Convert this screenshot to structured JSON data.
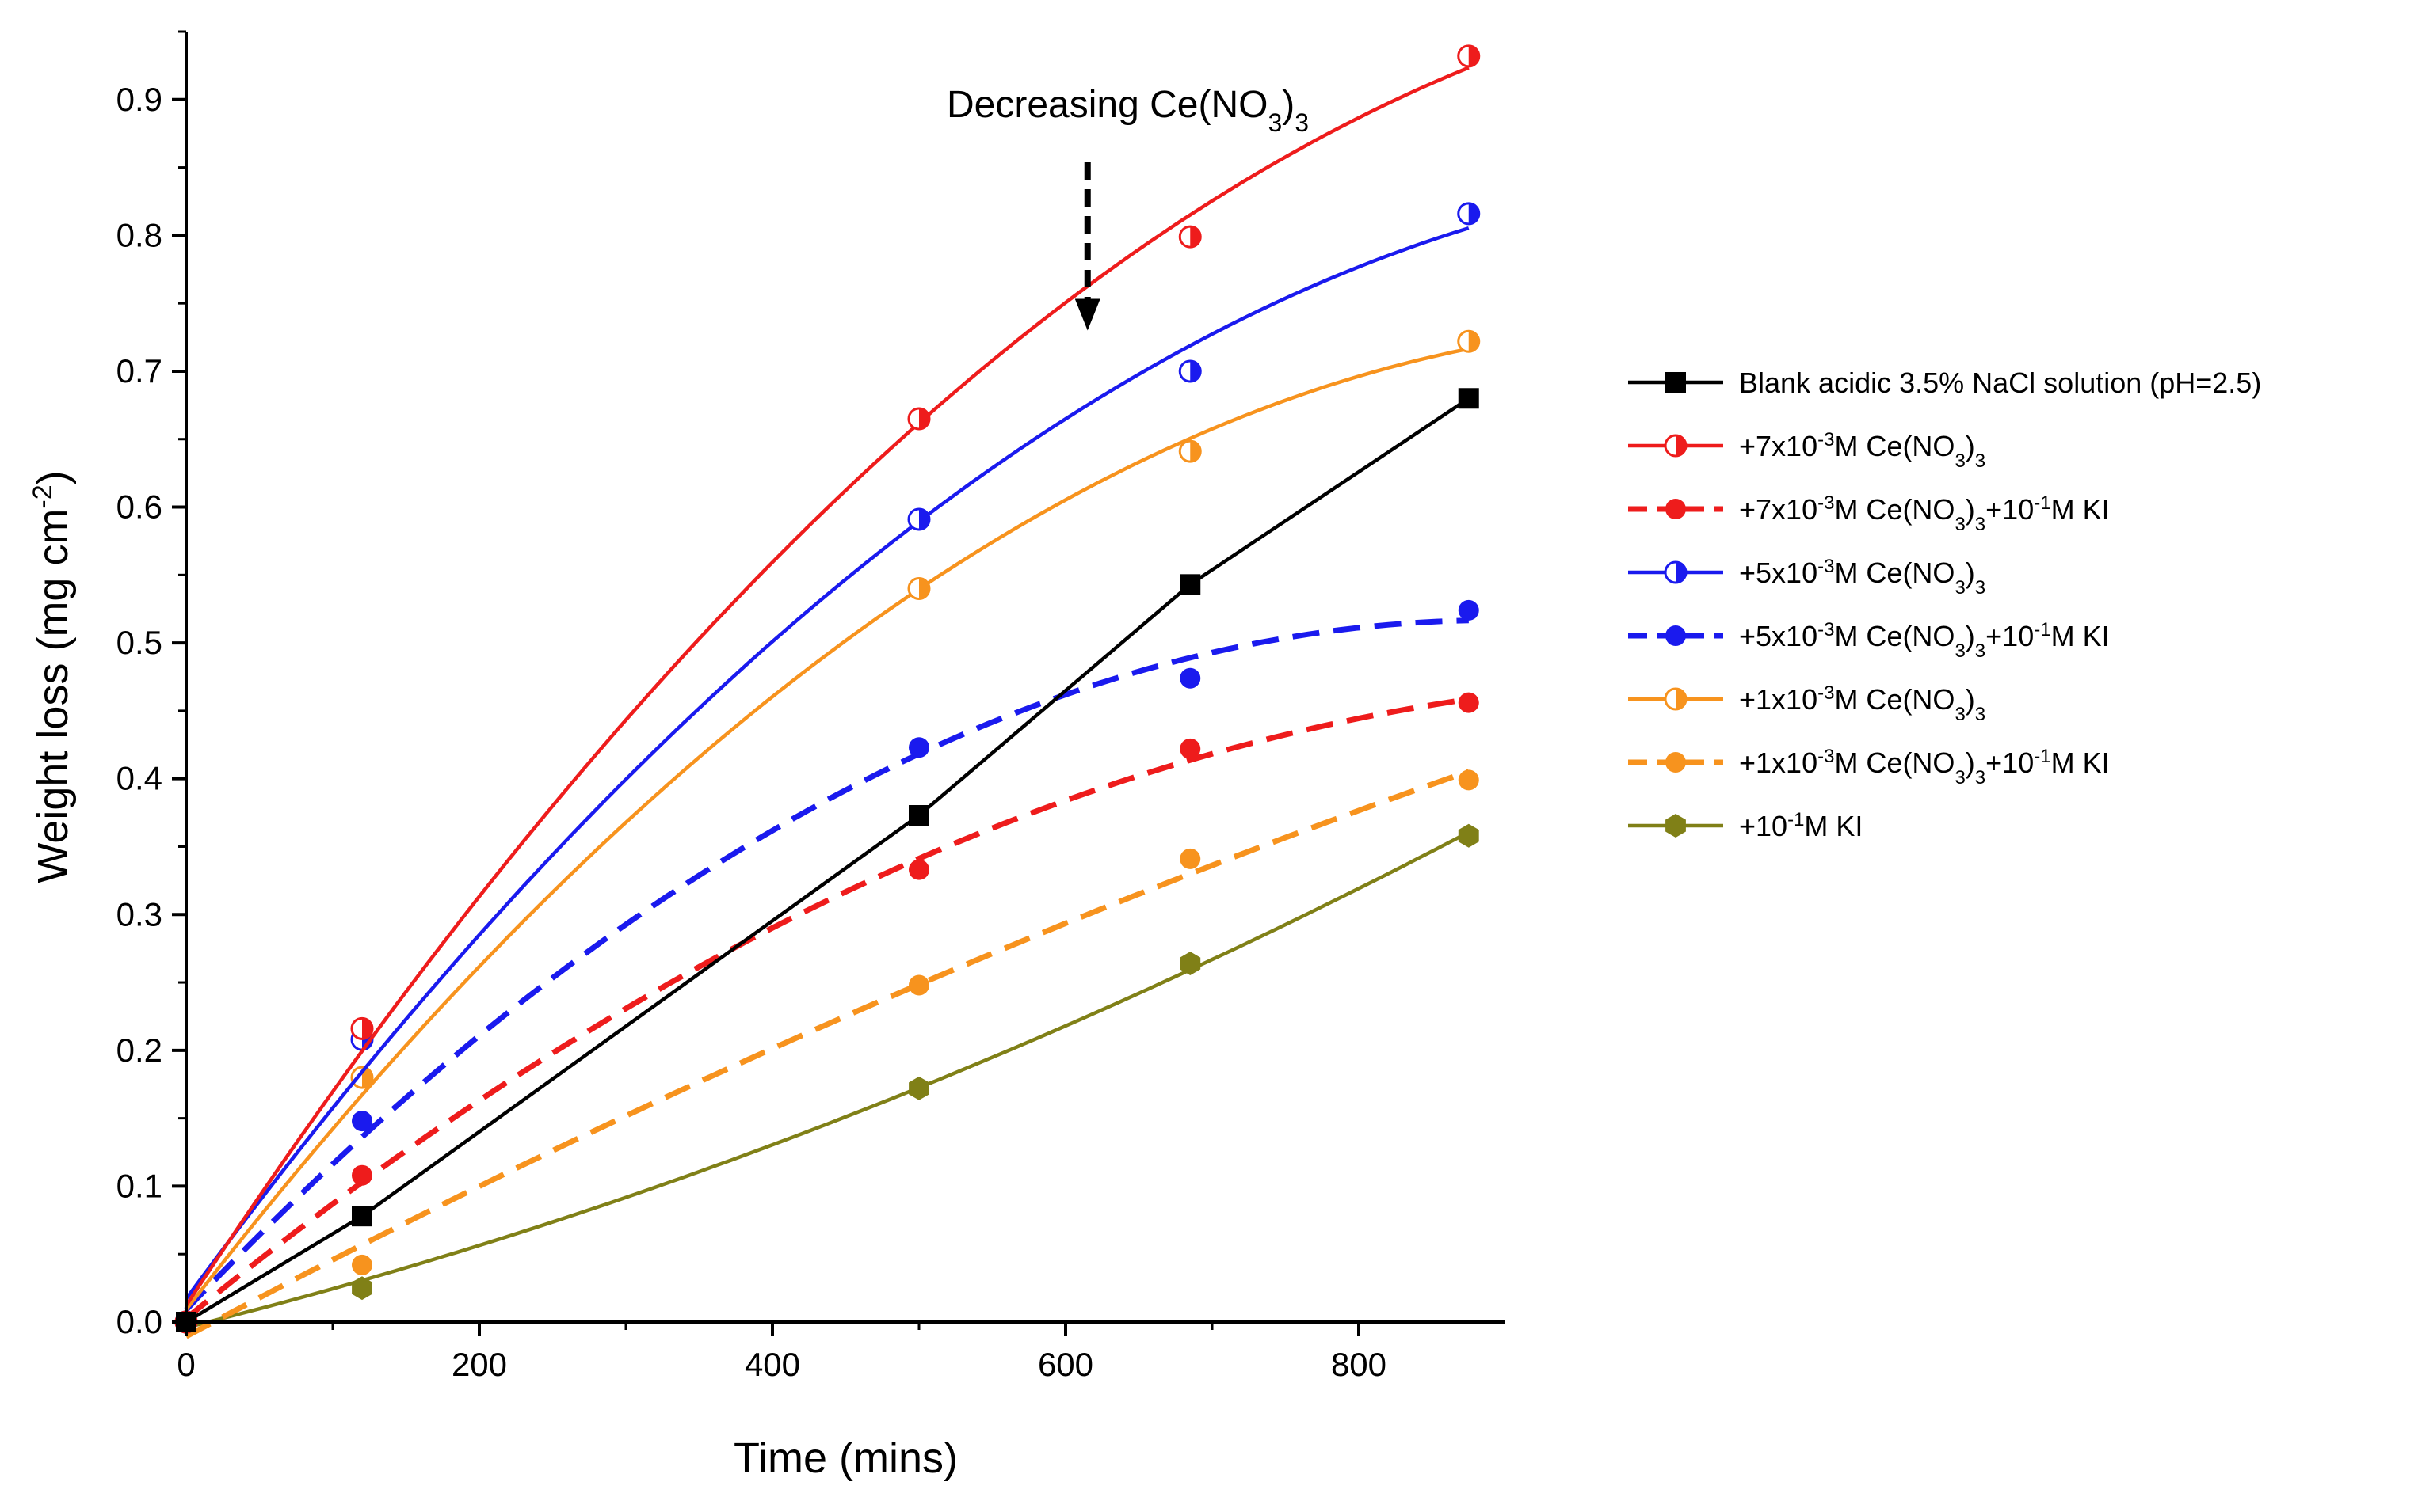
{
  "chart_data": {
    "type": "line",
    "title": "",
    "xlabel": "Time (mins)",
    "ylabel": "Weight loss (mg cm-2)",
    "ylabel_parts": {
      "main": "Weight loss (mg cm",
      "sup": "-2",
      "end": ")"
    },
    "xlim": [
      0,
      900
    ],
    "ylim": [
      0,
      0.95
    ],
    "xticks": [
      0,
      200,
      400,
      600,
      800
    ],
    "xtick_labels": [
      "0",
      "200",
      "400",
      "600",
      "800"
    ],
    "yticks": [
      0.0,
      0.1,
      0.2,
      0.3,
      0.4,
      0.5,
      0.6,
      0.7,
      0.8,
      0.9
    ],
    "ytick_labels": [
      "0.0",
      "0.1",
      "0.2",
      "0.3",
      "0.4",
      "0.5",
      "0.6",
      "0.7",
      "0.8",
      "0.9"
    ],
    "legend_position": "right",
    "annotation": {
      "text": "Decreasing Ce(NO3)3",
      "parts": {
        "main": "Decreasing Ce(NO",
        "sub": "3",
        "end": ")",
        "sub2": "3"
      },
      "arrow_from": [
        615,
        0.86
      ],
      "arrow_to": [
        615,
        0.73
      ]
    },
    "series": [
      {
        "name": "Blank acidic 3.5% NaCl solution (pH=2.5)",
        "label_parts": [
          [
            "t",
            "Blank acidic 3.5% NaCl solution (pH=2.5)"
          ]
        ],
        "color": "#000000",
        "marker": "square",
        "fill": "full",
        "line": "solid",
        "fit": "linear",
        "x": [
          0,
          120,
          500,
          685,
          875
        ],
        "y": [
          0.0,
          0.078,
          0.373,
          0.543,
          0.68
        ]
      },
      {
        "name": "+7x10-3M Ce(NO3)3",
        "label_parts": [
          [
            "t",
            "+7x10"
          ],
          [
            "sup",
            "-3"
          ],
          [
            "t",
            "M Ce(NO"
          ],
          [
            "sub",
            "3"
          ],
          [
            "t",
            ")"
          ],
          [
            "sub",
            "3"
          ]
        ],
        "color": "#ee1c1c",
        "marker": "circle",
        "fill": "half",
        "line": "solid",
        "fit": "smooth",
        "x": [
          0,
          120,
          500,
          685,
          875
        ],
        "y": [
          0.0,
          0.216,
          0.665,
          0.799,
          0.932
        ]
      },
      {
        "name": "+7x10-3M Ce(NO3)3+10-1M KI",
        "label_parts": [
          [
            "t",
            "+7x10"
          ],
          [
            "sup",
            "-3"
          ],
          [
            "t",
            "M Ce(NO"
          ],
          [
            "sub",
            "3"
          ],
          [
            "t",
            ")"
          ],
          [
            "sub",
            "3"
          ],
          [
            "t",
            "+10"
          ],
          [
            "sup",
            "-1"
          ],
          [
            "t",
            "M KI"
          ]
        ],
        "color": "#ee1c1c",
        "marker": "circle",
        "fill": "full",
        "line": "dash",
        "fit": "smooth",
        "x": [
          0,
          120,
          500,
          685,
          875
        ],
        "y": [
          0.0,
          0.108,
          0.333,
          0.422,
          0.456
        ]
      },
      {
        "name": "+5x10-3M Ce(NO3)3",
        "label_parts": [
          [
            "t",
            "+5x10"
          ],
          [
            "sup",
            "-3"
          ],
          [
            "t",
            "M Ce(NO"
          ],
          [
            "sub",
            "3"
          ],
          [
            "t",
            ")"
          ],
          [
            "sub",
            "3"
          ]
        ],
        "color": "#1a1aee",
        "marker": "circle",
        "fill": "half",
        "line": "solid",
        "fit": "smooth",
        "x": [
          0,
          120,
          500,
          685,
          875
        ],
        "y": [
          0.0,
          0.208,
          0.591,
          0.7,
          0.816
        ]
      },
      {
        "name": "+5x10-3M Ce(NO3)3+10-1M KI",
        "label_parts": [
          [
            "t",
            "+5x10"
          ],
          [
            "sup",
            "-3"
          ],
          [
            "t",
            "M Ce(NO"
          ],
          [
            "sub",
            "3"
          ],
          [
            "t",
            ")"
          ],
          [
            "sub",
            "3"
          ],
          [
            "t",
            "+10"
          ],
          [
            "sup",
            "-1"
          ],
          [
            "t",
            "M KI"
          ]
        ],
        "color": "#1a1aee",
        "marker": "circle",
        "fill": "full",
        "line": "dash",
        "fit": "smooth",
        "x": [
          0,
          120,
          500,
          685,
          875
        ],
        "y": [
          0.0,
          0.148,
          0.423,
          0.474,
          0.524
        ]
      },
      {
        "name": "+1x10-3M Ce(NO3)3",
        "label_parts": [
          [
            "t",
            "+1x10"
          ],
          [
            "sup",
            "-3"
          ],
          [
            "t",
            "M Ce(NO"
          ],
          [
            "sub",
            "3"
          ],
          [
            "t",
            ")"
          ],
          [
            "sub",
            "3"
          ]
        ],
        "color": "#f7931e",
        "marker": "circle",
        "fill": "half",
        "line": "solid",
        "fit": "smooth",
        "x": [
          0,
          120,
          500,
          685,
          875
        ],
        "y": [
          0.0,
          0.18,
          0.54,
          0.641,
          0.722
        ]
      },
      {
        "name": "+1x10-3M Ce(NO3)3+10-1M KI",
        "label_parts": [
          [
            "t",
            "+1x10"
          ],
          [
            "sup",
            "-3"
          ],
          [
            "t",
            "M Ce(NO"
          ],
          [
            "sub",
            "3"
          ],
          [
            "t",
            ")"
          ],
          [
            "sub",
            "3"
          ],
          [
            "t",
            "+10"
          ],
          [
            "sup",
            "-1"
          ],
          [
            "t",
            "M KI"
          ]
        ],
        "color": "#f7931e",
        "marker": "circle",
        "fill": "full",
        "line": "dash",
        "fit": "smooth",
        "x": [
          0,
          120,
          500,
          685,
          875
        ],
        "y": [
          0.0,
          0.042,
          0.248,
          0.341,
          0.399
        ]
      },
      {
        "name": "+10-1M KI",
        "label_parts": [
          [
            "t",
            "+10"
          ],
          [
            "sup",
            "-1"
          ],
          [
            "t",
            "M KI"
          ]
        ],
        "color": "#808017",
        "marker": "hexagon",
        "fill": "full",
        "line": "solid",
        "fit": "smooth",
        "x": [
          0,
          120,
          500,
          685,
          875
        ],
        "y": [
          0.0,
          0.025,
          0.172,
          0.264,
          0.358
        ]
      }
    ]
  }
}
